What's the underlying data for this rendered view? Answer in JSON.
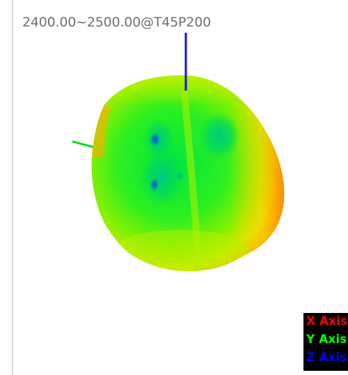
{
  "plot": {
    "title": "2400.00~2500.00@T45P200"
  },
  "legend": {
    "items": [
      {
        "label": "X Axis",
        "color": "#ff0000"
      },
      {
        "label": "Y Axis",
        "color": "#00ff00"
      },
      {
        "label": "Z Axis",
        "color": "#0000ff"
      }
    ]
  },
  "colors": {
    "background": "#ffffff",
    "pattern_low": "#00e040",
    "pattern_mid": "#a0f000",
    "pattern_high": "#ff9000",
    "null_spot": "#1050c0"
  }
}
